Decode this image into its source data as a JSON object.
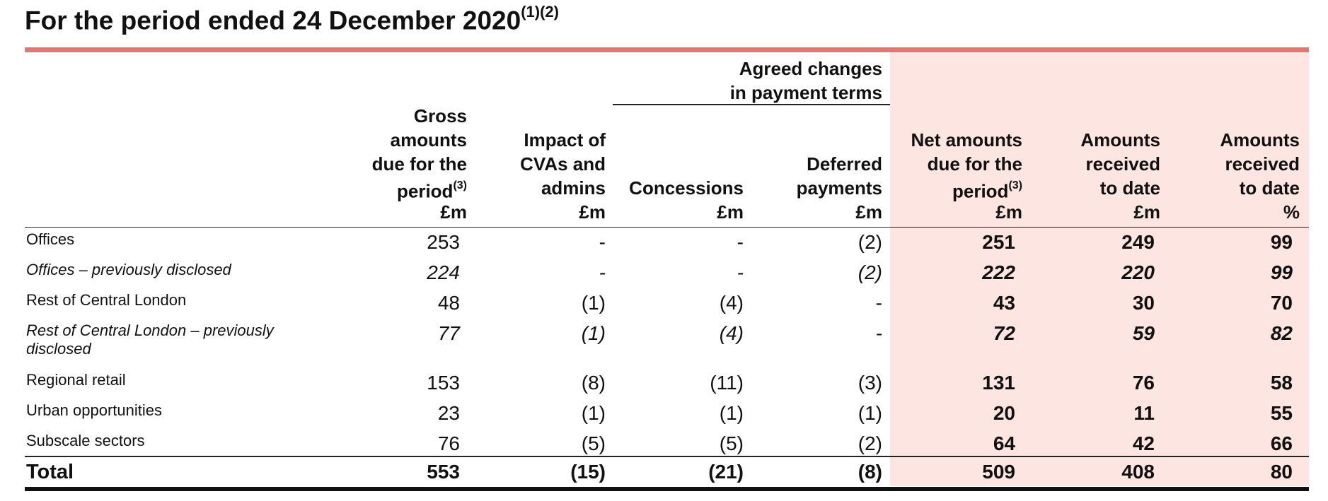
{
  "title": {
    "text": "For the period ended 24 December 2020",
    "note": "(1)(2)"
  },
  "group_header": {
    "line1": "Agreed changes",
    "line2": "in payment terms"
  },
  "columns": [
    {
      "lines": [
        "Gross",
        "amounts",
        "due for the",
        "period"
      ],
      "note": "(3)",
      "unit": "£m"
    },
    {
      "lines": [
        "Impact of",
        "CVAs and",
        "admins"
      ],
      "note": "",
      "unit": "£m"
    },
    {
      "lines": [
        "Concessions"
      ],
      "note": "",
      "unit": "£m"
    },
    {
      "lines": [
        "Deferred",
        "payments"
      ],
      "note": "",
      "unit": "£m"
    },
    {
      "lines": [
        "Net amounts",
        "due for the",
        "period"
      ],
      "note": "(3)",
      "unit": "£m"
    },
    {
      "lines": [
        "Amounts",
        "received",
        "to date"
      ],
      "note": "",
      "unit": "£m"
    },
    {
      "lines": [
        "Amounts",
        "received",
        "to date"
      ],
      "note": "",
      "unit": "%"
    }
  ],
  "rows": [
    {
      "label": "Offices",
      "italic": false,
      "values": [
        "253",
        "-",
        "-",
        "(2)",
        "251",
        "249",
        "99"
      ]
    },
    {
      "label": "Offices – previously disclosed",
      "italic": true,
      "values": [
        "224",
        "-",
        "-",
        "(2)",
        "222",
        "220",
        "99"
      ]
    },
    {
      "label": "Rest of Central London",
      "italic": false,
      "values": [
        "48",
        "(1)",
        "(4)",
        "-",
        "43",
        "30",
        "70"
      ]
    },
    {
      "label": "Rest of Central London – previously disclosed",
      "label_lines": [
        "Rest of Central London – previously",
        "disclosed"
      ],
      "italic": true,
      "values": [
        "77",
        "(1)",
        "(4)",
        "-",
        "72",
        "59",
        "82"
      ]
    },
    {
      "label": "Regional retail",
      "italic": false,
      "values": [
        "153",
        "(8)",
        "(11)",
        "(3)",
        "131",
        "76",
        "58"
      ]
    },
    {
      "label": "Urban opportunities",
      "italic": false,
      "values": [
        "23",
        "(1)",
        "(1)",
        "(1)",
        "20",
        "11",
        "55"
      ]
    },
    {
      "label": "Subscale sectors",
      "italic": false,
      "values": [
        "76",
        "(5)",
        "(5)",
        "(2)",
        "64",
        "42",
        "66"
      ]
    }
  ],
  "total": {
    "label": "Total",
    "values": [
      "553",
      "(15)",
      "(21)",
      "(8)",
      "509",
      "408",
      "80"
    ]
  },
  "colors": {
    "accent_rule": "#e8766f",
    "shaded_columns": "#fde5e2"
  }
}
